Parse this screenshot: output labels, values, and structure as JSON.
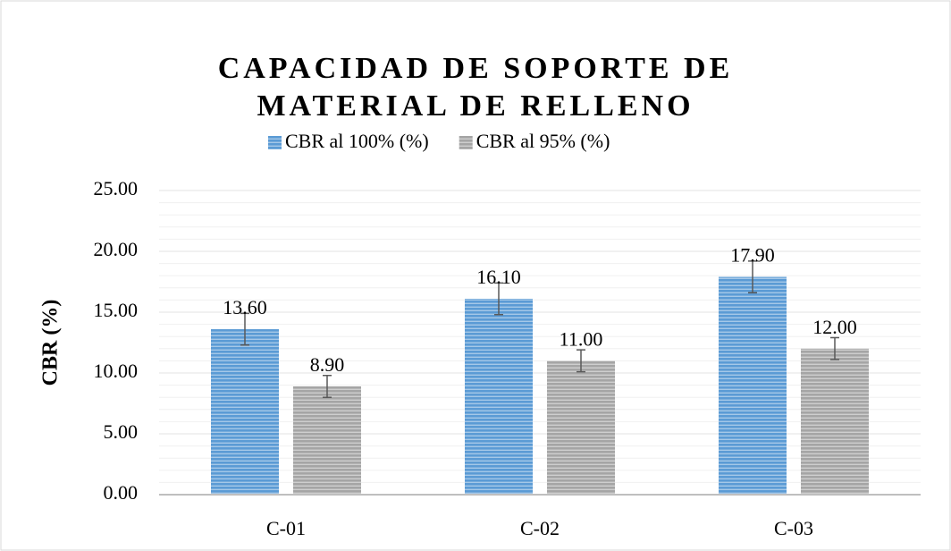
{
  "chart_data": {
    "type": "bar",
    "title": "CAPACIDAD DE SOPORTE DE MATERIAL DE RELLENO",
    "y_label": "CBR (%)",
    "categories": [
      "C-01",
      "C-02",
      "C-03"
    ],
    "series": [
      {
        "name": "CBR al 100% (%)",
        "color": "#5b9bd5",
        "values": [
          13.6,
          16.1,
          17.9
        ],
        "value_labels": [
          "13.60",
          "16.10",
          "17.90"
        ],
        "errors": [
          1.3,
          1.3,
          1.3
        ]
      },
      {
        "name": "CBR al 95% (%)",
        "color": "#a5a5a5",
        "values": [
          8.9,
          11.0,
          12.0
        ],
        "value_labels": [
          "8.90",
          "11.00",
          "12.00"
        ],
        "errors": [
          0.9,
          0.9,
          0.9
        ]
      }
    ],
    "ylim": [
      0,
      25
    ],
    "yticks": [
      {
        "value": 0,
        "label": "0.00"
      },
      {
        "value": 5,
        "label": "5.00"
      },
      {
        "value": 10,
        "label": "10.00"
      },
      {
        "value": 15,
        "label": "15.00"
      },
      {
        "value": 20,
        "label": "20.00"
      },
      {
        "value": 25,
        "label": "25.00"
      }
    ],
    "grid": true,
    "minor_grid": true,
    "legend": "top"
  }
}
